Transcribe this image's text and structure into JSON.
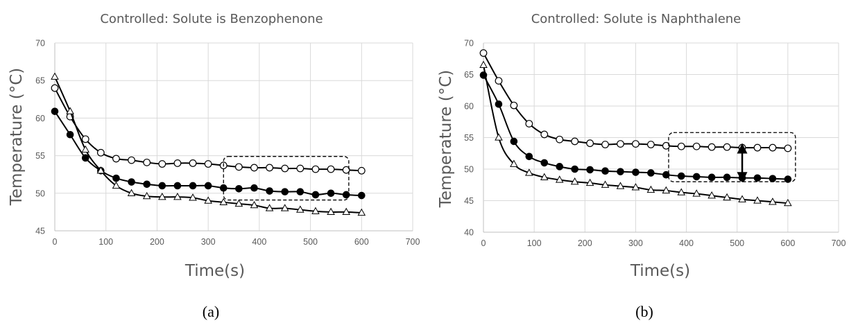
{
  "chart_data": [
    {
      "type": "line",
      "title": "Controlled: Solute is Benzophenone",
      "xlabel": "Time(s)",
      "ylabel": "Temperature (°C)",
      "xlim": [
        0,
        700
      ],
      "ylim": [
        45,
        70
      ],
      "xticks": [
        0,
        100,
        200,
        300,
        400,
        500,
        600,
        700
      ],
      "yticks": [
        45,
        50,
        55,
        60,
        65,
        70
      ],
      "grid": true,
      "caption": "(a)",
      "x": [
        0,
        30,
        60,
        90,
        120,
        150,
        180,
        210,
        240,
        270,
        300,
        330,
        360,
        390,
        420,
        450,
        480,
        510,
        540,
        570,
        600
      ],
      "series": [
        {
          "marker": "open-circle",
          "values": [
            64.0,
            60.2,
            57.2,
            55.4,
            54.6,
            54.4,
            54.1,
            53.9,
            54.0,
            54.0,
            53.9,
            53.7,
            53.5,
            53.4,
            53.4,
            53.3,
            53.3,
            53.2,
            53.2,
            53.1,
            53.0
          ]
        },
        {
          "marker": "filled-circle",
          "values": [
            60.9,
            57.8,
            54.7,
            53.0,
            52.0,
            51.5,
            51.2,
            51.0,
            51.0,
            51.0,
            51.0,
            50.7,
            50.6,
            50.7,
            50.3,
            50.2,
            50.2,
            49.8,
            50.0,
            49.8,
            49.7
          ]
        },
        {
          "marker": "open-triangle",
          "values": [
            65.5,
            60.9,
            55.8,
            53.0,
            51.0,
            50.0,
            49.6,
            49.5,
            49.5,
            49.4,
            49.0,
            48.8,
            48.6,
            48.4,
            48.0,
            48.0,
            47.8,
            47.6,
            47.5,
            47.5,
            47.4
          ]
        }
      ],
      "annotation_box": {
        "x": [
          330,
          575
        ],
        "y": [
          49.1,
          54.9
        ]
      }
    },
    {
      "type": "line",
      "title": "Controlled: Solute is Naphthalene",
      "xlabel": "Time(s)",
      "ylabel": "Temperature (°C)",
      "xlim": [
        0,
        700
      ],
      "ylim": [
        40,
        70
      ],
      "xticks": [
        0,
        100,
        200,
        300,
        400,
        500,
        600,
        700
      ],
      "yticks": [
        40,
        45,
        50,
        55,
        60,
        65,
        70
      ],
      "grid": true,
      "caption": "(b)",
      "x": [
        0,
        30,
        60,
        90,
        120,
        150,
        180,
        210,
        240,
        270,
        300,
        330,
        360,
        390,
        420,
        450,
        480,
        510,
        540,
        570,
        600
      ],
      "series": [
        {
          "marker": "open-circle",
          "values": [
            68.4,
            64.0,
            60.1,
            57.2,
            55.5,
            54.7,
            54.4,
            54.1,
            53.9,
            54.0,
            54.0,
            53.9,
            53.7,
            53.6,
            53.6,
            53.5,
            53.5,
            53.4,
            53.4,
            53.4,
            53.3
          ]
        },
        {
          "marker": "filled-circle",
          "values": [
            64.9,
            60.3,
            54.4,
            52.0,
            51.0,
            50.4,
            50.0,
            49.9,
            49.7,
            49.6,
            49.5,
            49.4,
            49.1,
            48.9,
            48.8,
            48.7,
            48.7,
            48.6,
            48.6,
            48.5,
            48.4
          ]
        },
        {
          "marker": "open-triangle",
          "values": [
            66.5,
            55.0,
            50.8,
            49.4,
            48.7,
            48.3,
            48.0,
            47.8,
            47.5,
            47.3,
            47.1,
            46.7,
            46.6,
            46.3,
            46.1,
            45.8,
            45.5,
            45.2,
            45.0,
            44.8,
            44.6
          ]
        }
      ],
      "annotation_box": {
        "x": [
          365,
          615
        ],
        "y": [
          48.0,
          55.8
        ]
      },
      "annotation_arrow": {
        "x": 510,
        "y": [
          53.4,
          48.6
        ]
      }
    }
  ]
}
